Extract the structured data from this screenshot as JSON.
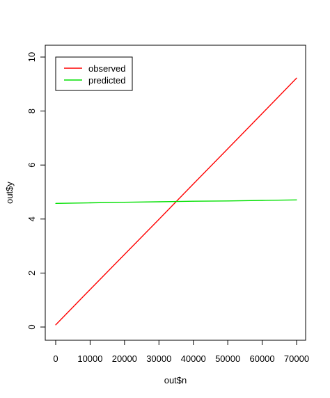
{
  "chart_data": {
    "type": "line",
    "xlabel": "out$n",
    "ylabel": "out$y",
    "xlim": [
      0,
      70000
    ],
    "ylim": [
      0,
      10
    ],
    "xticks": [
      0,
      10000,
      20000,
      30000,
      40000,
      50000,
      60000,
      70000
    ],
    "yticks": [
      0,
      2,
      4,
      6,
      8,
      10
    ],
    "grid": false,
    "legend_position": "top-left",
    "x": [
      0,
      10000,
      20000,
      30000,
      40000,
      50000,
      60000,
      70000
    ],
    "series": [
      {
        "name": "observed",
        "color": "#ff0000",
        "values": [
          0.08,
          1.39,
          2.69,
          3.99,
          5.3,
          6.6,
          7.91,
          9.22
        ]
      },
      {
        "name": "predicted",
        "color": "#00e000",
        "values": [
          4.58,
          4.6,
          4.62,
          4.64,
          4.66,
          4.67,
          4.69,
          4.71
        ]
      }
    ]
  }
}
